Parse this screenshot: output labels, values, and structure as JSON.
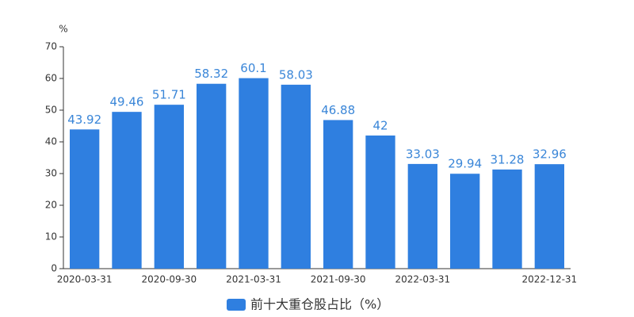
{
  "chart_data": {
    "type": "bar",
    "unit": "%",
    "legend": "前十大重仓股占比（%）",
    "categories": [
      "2020-03-31",
      null,
      "2020-09-30",
      null,
      "2021-03-31",
      null,
      "2021-09-30",
      null,
      "2022-03-31",
      null,
      null,
      "2022-12-31"
    ],
    "values": [
      43.92,
      49.46,
      51.71,
      58.32,
      60.1,
      58.03,
      46.88,
      42,
      33.03,
      29.94,
      31.28,
      32.96
    ],
    "color": "#2f7fe0",
    "ylim": [
      0,
      70
    ],
    "yticks": [
      0,
      10,
      20,
      30,
      40,
      50,
      60,
      70
    ],
    "grid": false
  }
}
